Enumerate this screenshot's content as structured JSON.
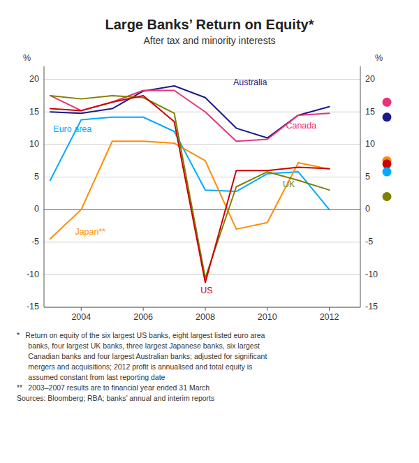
{
  "chart_data": {
    "type": "line",
    "title": "Large Banks’ Return on Equity*",
    "subtitle": "After tax and minority interests",
    "ylabel": "%",
    "y2label": "%",
    "x": [
      2003,
      2004,
      2005,
      2006,
      2007,
      2008,
      2009,
      2010,
      2011,
      2012
    ],
    "xlim": [
      2002.8,
      2013.0
    ],
    "xticks": [
      2004,
      2006,
      2008,
      2010,
      2012
    ],
    "ylim": [
      -15,
      22
    ],
    "yticks": [
      -15,
      -10,
      -5,
      0,
      5,
      10,
      15,
      20
    ],
    "y2lim": [
      -15,
      22
    ],
    "y2ticks": [
      -15,
      -10,
      -5,
      0,
      5,
      10,
      15,
      20
    ],
    "grid": true,
    "series": [
      {
        "name": "Australia",
        "color": "#1a1a8c",
        "values": [
          15.0,
          14.8,
          15.5,
          18.2,
          19.0,
          17.2,
          12.5,
          11.0,
          14.5,
          15.8
        ],
        "label_x": 2008.9,
        "label_y": 19.5
      },
      {
        "name": "Canada",
        "color": "#e8337a",
        "values": [
          17.5,
          15.2,
          16.5,
          18.3,
          18.3,
          15.0,
          10.5,
          10.8,
          14.5,
          14.8
        ],
        "label_x": 2010.6,
        "label_y": 12.8
      },
      {
        "name": "Euro area",
        "color": "#00aaff",
        "values": [
          4.5,
          13.8,
          14.2,
          14.2,
          12.0,
          3.0,
          2.8,
          5.5,
          5.8,
          0.0
        ],
        "label_x": 2003.1,
        "label_y": 12.3
      },
      {
        "name": "Japan**",
        "color": "#ff8c00",
        "values": [
          -4.5,
          0.0,
          10.5,
          10.5,
          10.2,
          7.5,
          -3.0,
          -2.0,
          7.2,
          6.2
        ],
        "label_x": 2003.8,
        "label_y": -3.5
      },
      {
        "name": "UK",
        "color": "#808000",
        "values": [
          17.5,
          17.0,
          17.5,
          17.2,
          14.8,
          -10.5,
          3.5,
          5.8,
          4.5,
          3.0
        ],
        "label_x": 2010.5,
        "label_y": 3.8
      },
      {
        "name": "US",
        "color": "#cc0000",
        "values": [
          15.5,
          15.2,
          16.5,
          17.5,
          13.5,
          -11.2,
          6.0,
          6.0,
          6.5,
          6.3
        ],
        "label_x": 2007.85,
        "label_y": -12.5
      }
    ],
    "dots": [
      {
        "y": 16.5,
        "color": "#e8337a"
      },
      {
        "y": 14.2,
        "color": "#1a1a8c"
      },
      {
        "y": 7.5,
        "color": "#ff8c00"
      },
      {
        "y": 7.0,
        "color": "#cc0000"
      },
      {
        "y": 5.8,
        "color": "#00aaff"
      },
      {
        "y": 2.0,
        "color": "#808000"
      }
    ],
    "footnotes": [
      "*  Return on equity of the six largest US banks, eight largest listed euro area",
      "    banks, four largest UK banks, three largest Japanese banks, six largest",
      "    Canadian banks and four largest Australian banks; adjusted for significant",
      "    mergers and acquisitions; 2012 profit is annualised and total equity is",
      "    assumed constant from last reporting date",
      "**  2003–2007 results are to financial year ended 31 March",
      "Sources: Bloomberg; RBA; banks’ annual and interim reports"
    ]
  }
}
